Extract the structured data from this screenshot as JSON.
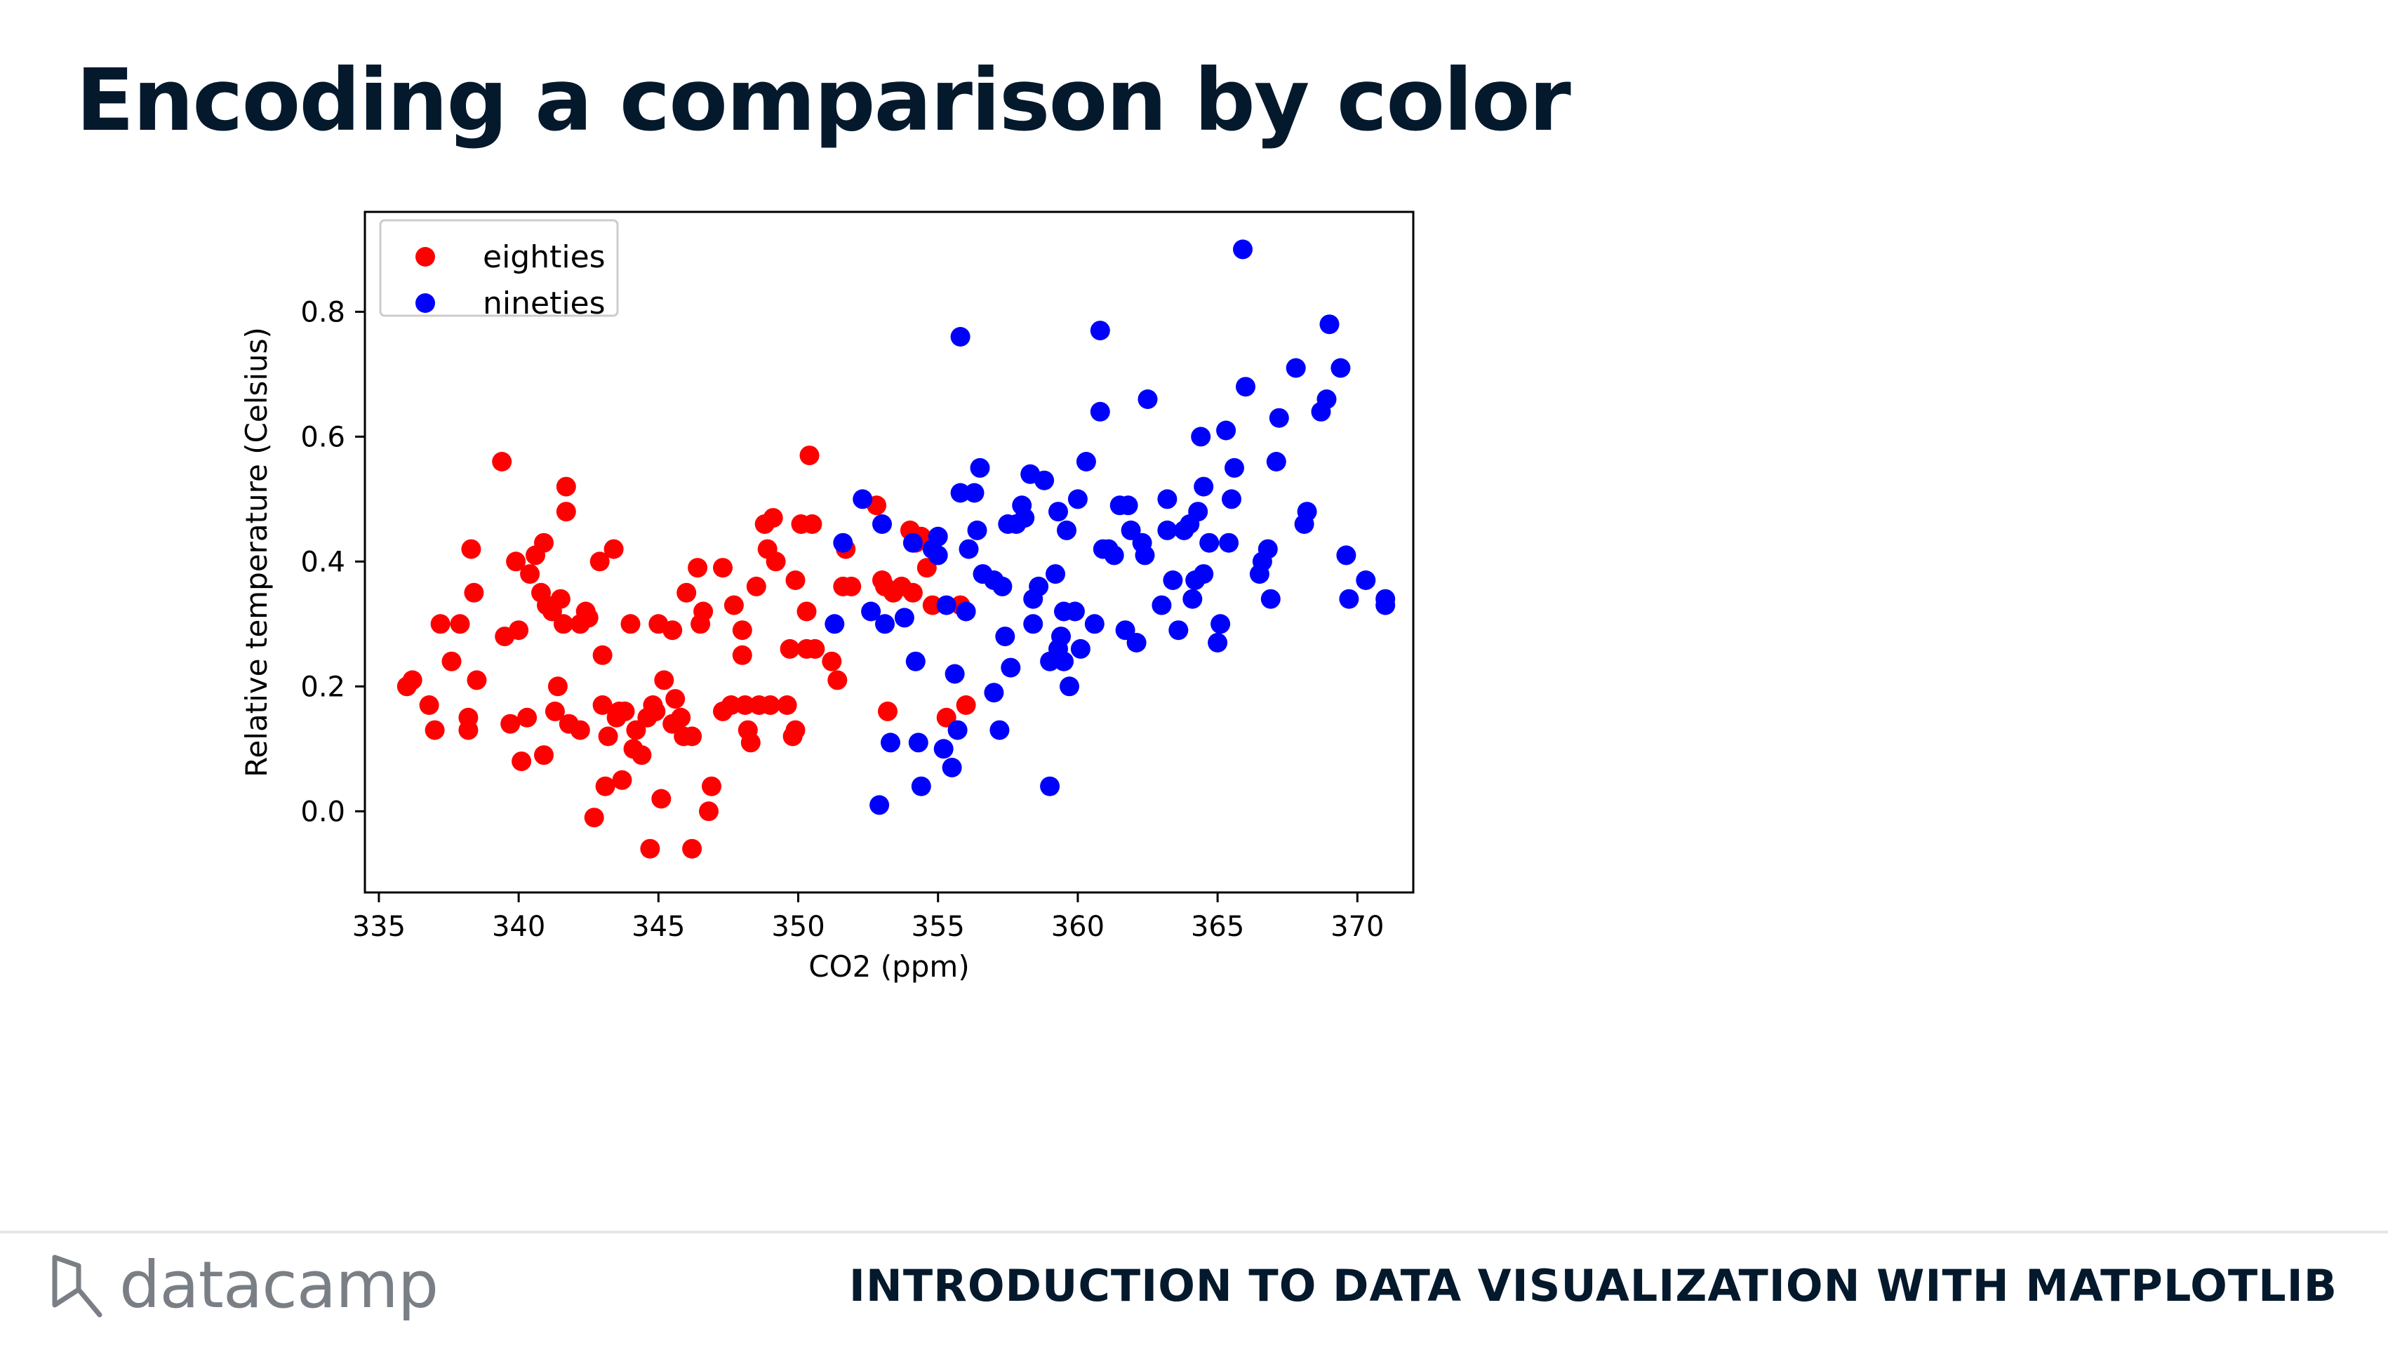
{
  "slide": {
    "title": "Encoding a comparison by color"
  },
  "footer": {
    "logo_text": "datacamp",
    "course_title": "INTRODUCTION TO DATA VISUALIZATION WITH MATPLOTLIB"
  },
  "colors": {
    "title": "#05192d",
    "eighties": "#ff0000",
    "nineties": "#0000ff",
    "logo": "#7a7f86"
  },
  "chart_data": {
    "type": "scatter",
    "xlabel": "CO2 (ppm)",
    "ylabel": "Relative temperature (Celsius)",
    "xlim": [
      334.5,
      372
    ],
    "ylim": [
      -0.13,
      0.96
    ],
    "xticks": [
      335,
      340,
      345,
      350,
      355,
      360,
      365,
      370
    ],
    "yticks": [
      0.0,
      0.2,
      0.4,
      0.6,
      0.8
    ],
    "ytick_labels": [
      "0.0",
      "0.2",
      "0.4",
      "0.6",
      "0.8"
    ],
    "legend_position": "upper-left",
    "grid": false,
    "series": [
      {
        "name": "eighties",
        "color": "#ff0000",
        "points": [
          [
            336.0,
            0.2
          ],
          [
            336.2,
            0.21
          ],
          [
            336.8,
            0.17
          ],
          [
            337.0,
            0.13
          ],
          [
            337.2,
            0.3
          ],
          [
            337.6,
            0.24
          ],
          [
            337.9,
            0.3
          ],
          [
            338.2,
            0.15
          ],
          [
            338.2,
            0.13
          ],
          [
            338.3,
            0.42
          ],
          [
            338.4,
            0.35
          ],
          [
            338.5,
            0.21
          ],
          [
            339.4,
            0.56
          ],
          [
            339.5,
            0.28
          ],
          [
            339.7,
            0.14
          ],
          [
            339.9,
            0.4
          ],
          [
            340.0,
            0.29
          ],
          [
            340.1,
            0.08
          ],
          [
            340.3,
            0.15
          ],
          [
            340.4,
            0.38
          ],
          [
            340.6,
            0.41
          ],
          [
            340.8,
            0.35
          ],
          [
            340.9,
            0.43
          ],
          [
            340.9,
            0.09
          ],
          [
            341.0,
            0.33
          ],
          [
            341.2,
            0.32
          ],
          [
            341.3,
            0.16
          ],
          [
            341.4,
            0.2
          ],
          [
            341.5,
            0.34
          ],
          [
            341.6,
            0.3
          ],
          [
            341.7,
            0.52
          ],
          [
            341.7,
            0.48
          ],
          [
            341.8,
            0.14
          ],
          [
            342.2,
            0.13
          ],
          [
            342.2,
            0.3
          ],
          [
            342.4,
            0.32
          ],
          [
            342.5,
            0.31
          ],
          [
            342.7,
            -0.01
          ],
          [
            342.9,
            0.4
          ],
          [
            343.0,
            0.25
          ],
          [
            343.0,
            0.17
          ],
          [
            343.1,
            0.04
          ],
          [
            343.2,
            0.12
          ],
          [
            343.4,
            0.42
          ],
          [
            343.5,
            0.15
          ],
          [
            343.6,
            0.16
          ],
          [
            343.7,
            0.05
          ],
          [
            343.8,
            0.16
          ],
          [
            344.0,
            0.3
          ],
          [
            344.1,
            0.1
          ],
          [
            344.2,
            0.13
          ],
          [
            344.4,
            0.09
          ],
          [
            344.6,
            0.15
          ],
          [
            344.7,
            -0.06
          ],
          [
            344.8,
            0.17
          ],
          [
            344.9,
            0.16
          ],
          [
            345.0,
            0.3
          ],
          [
            345.1,
            0.02
          ],
          [
            345.2,
            0.21
          ],
          [
            345.5,
            0.29
          ],
          [
            345.5,
            0.14
          ],
          [
            345.6,
            0.18
          ],
          [
            345.8,
            0.15
          ],
          [
            345.9,
            0.12
          ],
          [
            346.0,
            0.35
          ],
          [
            346.2,
            0.12
          ],
          [
            346.2,
            -0.06
          ],
          [
            346.4,
            0.39
          ],
          [
            346.5,
            0.3
          ],
          [
            346.6,
            0.32
          ],
          [
            346.8,
            0.0
          ],
          [
            346.9,
            0.04
          ],
          [
            347.3,
            0.39
          ],
          [
            347.3,
            0.16
          ],
          [
            347.6,
            0.17
          ],
          [
            347.7,
            0.33
          ],
          [
            348.0,
            0.29
          ],
          [
            348.0,
            0.25
          ],
          [
            348.1,
            0.17
          ],
          [
            348.2,
            0.13
          ],
          [
            348.3,
            0.11
          ],
          [
            348.5,
            0.36
          ],
          [
            348.6,
            0.17
          ],
          [
            348.8,
            0.46
          ],
          [
            348.9,
            0.42
          ],
          [
            349.0,
            0.17
          ],
          [
            349.2,
            0.4
          ],
          [
            349.1,
            0.47
          ],
          [
            349.6,
            0.17
          ],
          [
            349.7,
            0.26
          ],
          [
            349.8,
            0.12
          ],
          [
            349.9,
            0.37
          ],
          [
            349.9,
            0.13
          ],
          [
            350.1,
            0.46
          ],
          [
            350.3,
            0.32
          ],
          [
            350.3,
            0.26
          ],
          [
            350.4,
            0.57
          ],
          [
            350.5,
            0.46
          ],
          [
            350.6,
            0.26
          ],
          [
            351.2,
            0.24
          ],
          [
            351.4,
            0.21
          ],
          [
            351.6,
            0.36
          ],
          [
            351.7,
            0.42
          ],
          [
            351.9,
            0.36
          ],
          [
            352.8,
            0.49
          ],
          [
            353.0,
            0.37
          ],
          [
            353.1,
            0.36
          ],
          [
            353.2,
            0.16
          ],
          [
            353.4,
            0.35
          ],
          [
            353.7,
            0.36
          ],
          [
            354.0,
            0.45
          ],
          [
            354.1,
            0.35
          ],
          [
            354.2,
            0.43
          ],
          [
            354.4,
            0.44
          ],
          [
            354.6,
            0.39
          ],
          [
            354.8,
            0.33
          ],
          [
            355.3,
            0.15
          ],
          [
            355.8,
            0.33
          ],
          [
            356.0,
            0.17
          ]
        ]
      },
      {
        "name": "nineties",
        "color": "#0000ff",
        "points": [
          [
            351.3,
            0.3
          ],
          [
            351.6,
            0.43
          ],
          [
            352.3,
            0.5
          ],
          [
            352.6,
            0.32
          ],
          [
            352.9,
            0.01
          ],
          [
            353.0,
            0.46
          ],
          [
            353.1,
            0.3
          ],
          [
            353.3,
            0.11
          ],
          [
            353.8,
            0.31
          ],
          [
            354.1,
            0.43
          ],
          [
            354.2,
            0.24
          ],
          [
            354.3,
            0.11
          ],
          [
            354.4,
            0.04
          ],
          [
            354.8,
            0.42
          ],
          [
            355.0,
            0.44
          ],
          [
            355.0,
            0.41
          ],
          [
            355.2,
            0.1
          ],
          [
            355.3,
            0.33
          ],
          [
            355.5,
            0.07
          ],
          [
            355.6,
            0.22
          ],
          [
            355.7,
            0.13
          ],
          [
            355.8,
            0.76
          ],
          [
            355.8,
            0.51
          ],
          [
            356.0,
            0.32
          ],
          [
            356.1,
            0.42
          ],
          [
            356.3,
            0.51
          ],
          [
            356.4,
            0.45
          ],
          [
            356.5,
            0.55
          ],
          [
            356.6,
            0.38
          ],
          [
            357.0,
            0.37
          ],
          [
            357.0,
            0.19
          ],
          [
            357.2,
            0.13
          ],
          [
            357.3,
            0.36
          ],
          [
            357.4,
            0.28
          ],
          [
            357.5,
            0.46
          ],
          [
            357.6,
            0.23
          ],
          [
            357.8,
            0.46
          ],
          [
            358.0,
            0.49
          ],
          [
            358.1,
            0.47
          ],
          [
            358.3,
            0.54
          ],
          [
            358.4,
            0.3
          ],
          [
            358.4,
            0.34
          ],
          [
            358.6,
            0.36
          ],
          [
            358.8,
            0.53
          ],
          [
            359.0,
            0.04
          ],
          [
            359.0,
            0.24
          ],
          [
            359.2,
            0.38
          ],
          [
            359.3,
            0.48
          ],
          [
            359.3,
            0.26
          ],
          [
            359.4,
            0.28
          ],
          [
            359.5,
            0.32
          ],
          [
            359.5,
            0.24
          ],
          [
            359.6,
            0.45
          ],
          [
            359.7,
            0.2
          ],
          [
            359.9,
            0.32
          ],
          [
            360.0,
            0.5
          ],
          [
            360.1,
            0.26
          ],
          [
            360.3,
            0.56
          ],
          [
            360.6,
            0.3
          ],
          [
            360.8,
            0.77
          ],
          [
            360.8,
            0.64
          ],
          [
            360.9,
            0.42
          ],
          [
            361.1,
            0.42
          ],
          [
            361.3,
            0.41
          ],
          [
            361.5,
            0.49
          ],
          [
            361.7,
            0.29
          ],
          [
            361.8,
            0.49
          ],
          [
            361.9,
            0.45
          ],
          [
            362.1,
            0.27
          ],
          [
            362.3,
            0.43
          ],
          [
            362.4,
            0.41
          ],
          [
            362.5,
            0.66
          ],
          [
            363.0,
            0.33
          ],
          [
            363.2,
            0.45
          ],
          [
            363.2,
            0.5
          ],
          [
            363.4,
            0.37
          ],
          [
            363.6,
            0.29
          ],
          [
            363.8,
            0.45
          ],
          [
            364.0,
            0.46
          ],
          [
            364.1,
            0.34
          ],
          [
            364.2,
            0.37
          ],
          [
            364.3,
            0.48
          ],
          [
            364.4,
            0.6
          ],
          [
            364.5,
            0.38
          ],
          [
            364.5,
            0.52
          ],
          [
            364.7,
            0.43
          ],
          [
            365.0,
            0.27
          ],
          [
            365.1,
            0.3
          ],
          [
            365.3,
            0.61
          ],
          [
            365.4,
            0.43
          ],
          [
            365.5,
            0.5
          ],
          [
            365.6,
            0.55
          ],
          [
            365.9,
            0.9
          ],
          [
            366.0,
            0.68
          ],
          [
            366.5,
            0.38
          ],
          [
            366.6,
            0.4
          ],
          [
            366.8,
            0.42
          ],
          [
            366.9,
            0.34
          ],
          [
            367.1,
            0.56
          ],
          [
            367.2,
            0.63
          ],
          [
            367.8,
            0.71
          ],
          [
            368.1,
            0.46
          ],
          [
            368.2,
            0.48
          ],
          [
            368.7,
            0.64
          ],
          [
            368.9,
            0.66
          ],
          [
            369.0,
            0.78
          ],
          [
            369.4,
            0.71
          ],
          [
            369.6,
            0.41
          ],
          [
            369.7,
            0.34
          ],
          [
            370.3,
            0.37
          ],
          [
            371.0,
            0.34
          ],
          [
            371.0,
            0.33
          ]
        ]
      }
    ]
  }
}
